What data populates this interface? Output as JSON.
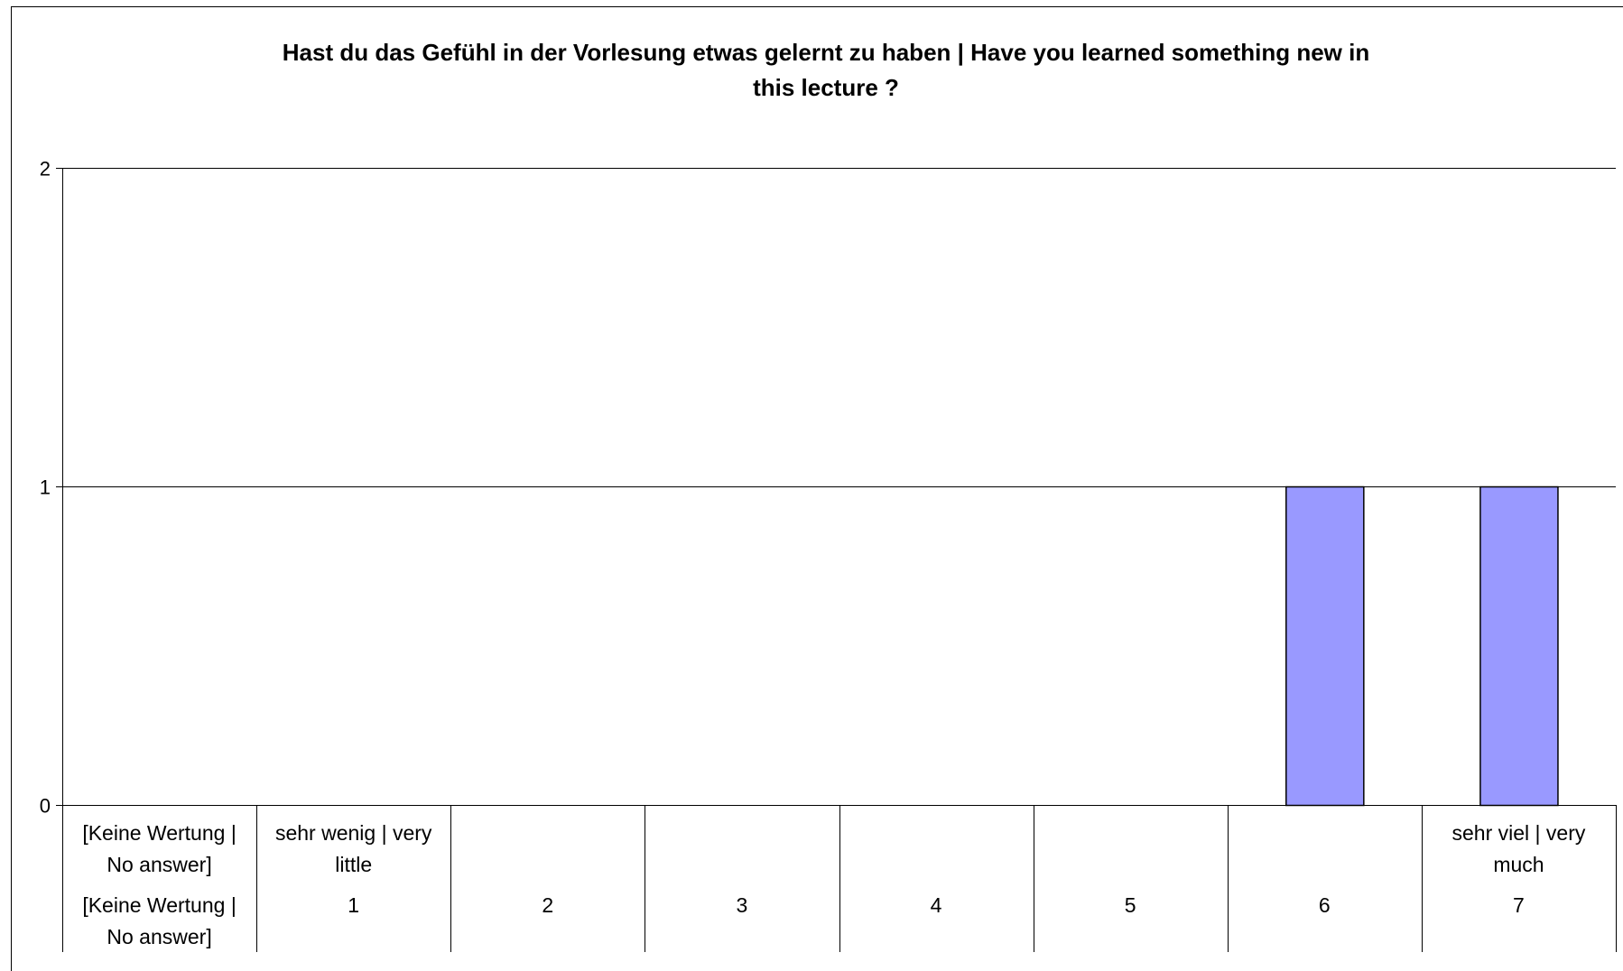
{
  "chart_data": {
    "type": "bar",
    "title_lines": [
      "Hast du das Gefühl in der Vorlesung etwas gelernt zu haben | Have you learned something new in",
      "this lecture ?"
    ],
    "categories": [
      {
        "label": [
          "[Keine Wertung |",
          "No answer]"
        ],
        "value_label": [
          "[Keine Wertung |",
          "No answer]"
        ]
      },
      {
        "label": [
          "sehr wenig | very",
          "little"
        ],
        "value_label": [
          "1"
        ]
      },
      {
        "label": [],
        "value_label": [
          "2"
        ]
      },
      {
        "label": [],
        "value_label": [
          "3"
        ]
      },
      {
        "label": [],
        "value_label": [
          "4"
        ]
      },
      {
        "label": [],
        "value_label": [
          "5"
        ]
      },
      {
        "label": [],
        "value_label": [
          "6"
        ]
      },
      {
        "label": [
          "sehr viel | very",
          "much"
        ],
        "value_label": [
          "7"
        ]
      }
    ],
    "values": [
      0,
      0,
      0,
      0,
      0,
      0,
      1,
      1
    ],
    "ylim": [
      0,
      2
    ],
    "yticks": [
      "0",
      "1",
      "2"
    ],
    "bar_color": "#9999ff",
    "bar_edge_color": "#000000",
    "gridlines": true,
    "legend": false
  }
}
